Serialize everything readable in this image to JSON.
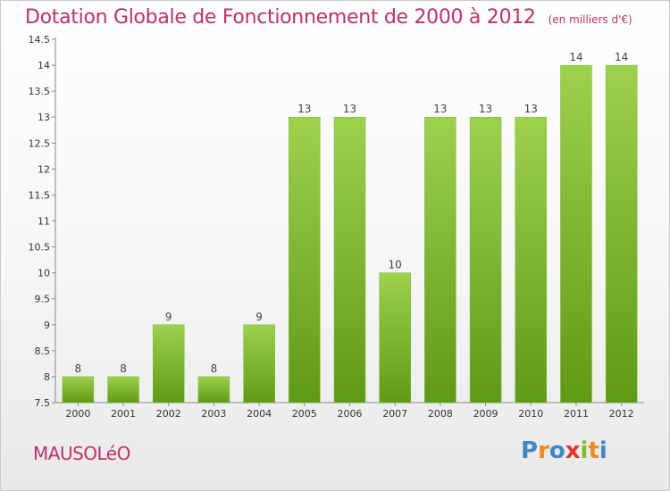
{
  "title": "Dotation Globale de Fonctionnement de 2000 à 2012",
  "subtitle": "(en milliers d'€)",
  "footer": {
    "town": "MAUSOLéO",
    "logo_text": "Proxiti"
  },
  "colors": {
    "bar_top": "#9dd24b",
    "bar_bottom": "#5f9a14",
    "title": "#c0306a",
    "logo": [
      "#3e88c8",
      "#f08a1c",
      "#3e88c8",
      "#e8322c",
      "#7cbf2a",
      "#f08a1c",
      "#3e88c8"
    ]
  },
  "chart_data": {
    "type": "bar",
    "categories": [
      "2000",
      "2001",
      "2002",
      "2003",
      "2004",
      "2005",
      "2006",
      "2007",
      "2008",
      "2009",
      "2010",
      "2011",
      "2012"
    ],
    "values": [
      8,
      8,
      9,
      8,
      9,
      13,
      13,
      10,
      13,
      13,
      13,
      14,
      14
    ],
    "data_labels": [
      "8",
      "8",
      "9",
      "8",
      "9",
      "13",
      "13",
      "10",
      "13",
      "13",
      "13",
      "14",
      "14"
    ],
    "yticks": [
      "7.5",
      "8",
      "8.5",
      "9",
      "9.5",
      "10",
      "10.5",
      "11",
      "11.5",
      "12",
      "12.5",
      "13",
      "13.5",
      "14",
      "14.5"
    ],
    "ylim": [
      7.5,
      14.5
    ],
    "grid": false,
    "legend": "none"
  }
}
